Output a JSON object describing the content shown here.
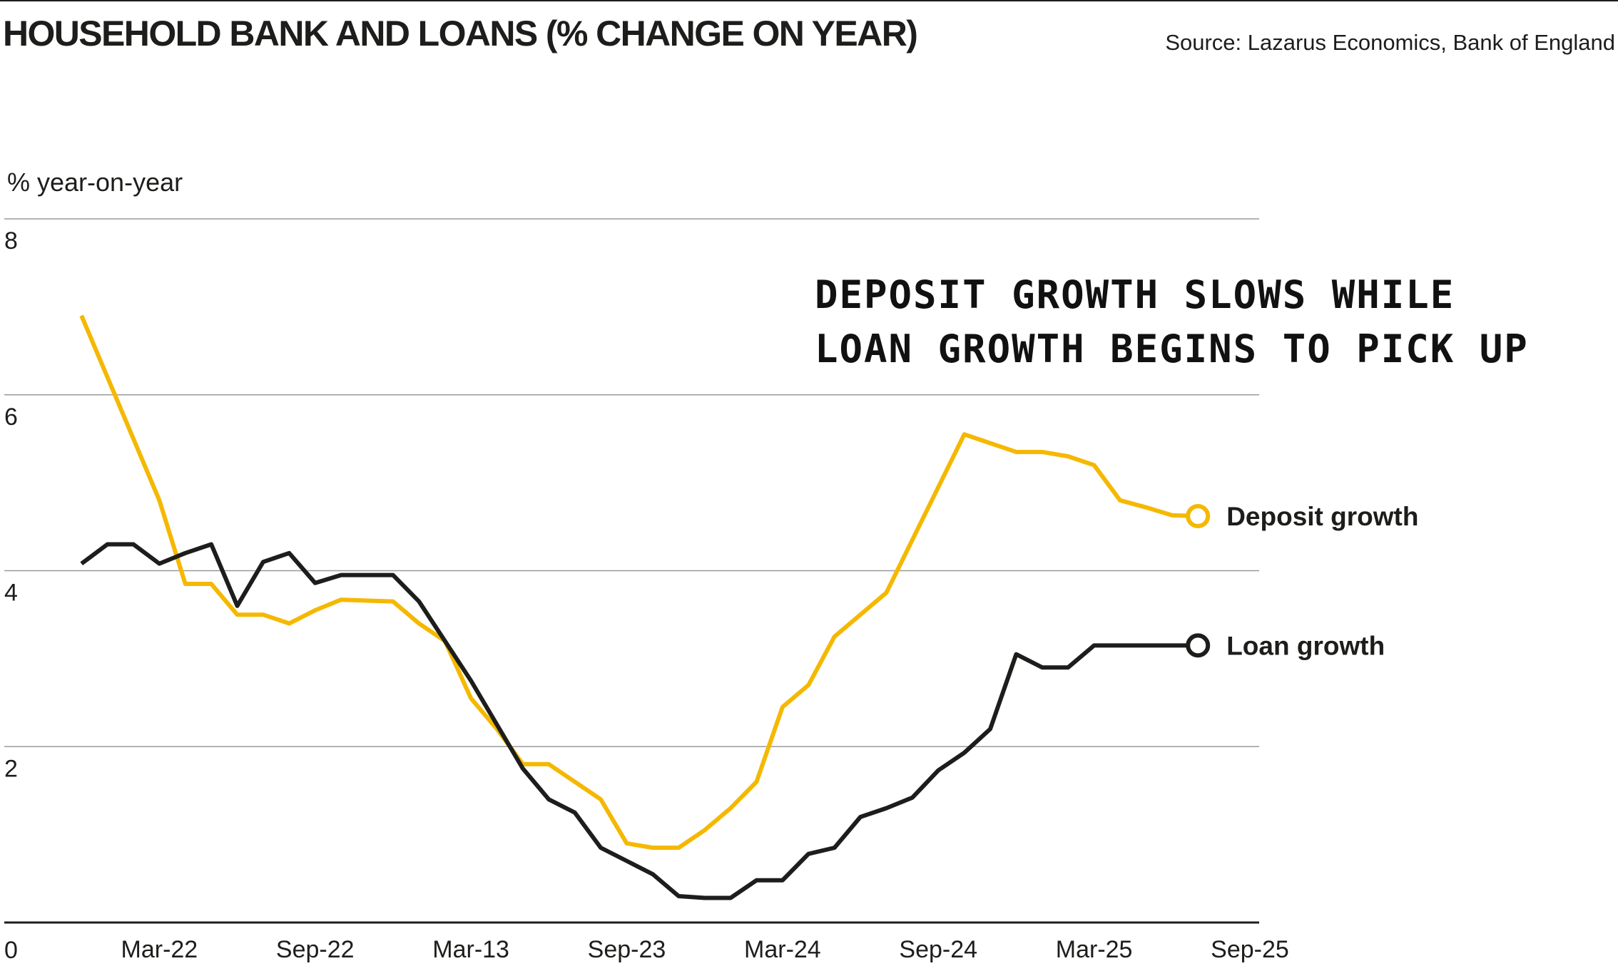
{
  "header": {
    "title": "HOUSEHOLD BANK AND LOANS (% CHANGE ON YEAR)",
    "source": "Source: Lazarus Economics, Bank of England"
  },
  "colors": {
    "deposit": "#f5b800",
    "loan": "#1d1d1b",
    "grid": "#9a9a9a",
    "text": "#1d1d1b"
  },
  "chart_data": {
    "type": "line",
    "ylabel": "% year-on-year",
    "ylim": [
      0,
      8
    ],
    "yticks": [
      "0",
      "2",
      "4",
      "6",
      "8"
    ],
    "xlim": [
      0,
      48
    ],
    "xticks": [
      {
        "x": 6,
        "label": "Mar-22"
      },
      {
        "x": 12,
        "label": "Sep-22"
      },
      {
        "x": 18,
        "label": "Mar-13"
      },
      {
        "x": 24,
        "label": "Sep-23"
      },
      {
        "x": 30,
        "label": "Mar-24"
      },
      {
        "x": 36,
        "label": "Sep-24"
      },
      {
        "x": 42,
        "label": "Mar-25"
      },
      {
        "x": 48,
        "label": "Sep-25"
      }
    ],
    "grid": true,
    "annotation": [
      "DEPOSIT GROWTH SLOWS WHILE",
      "LOAN GROWTH BEGINS TO PICK UP"
    ],
    "series": [
      {
        "name": "Deposit growth",
        "color": "#f5b800",
        "x": [
          3,
          4,
          5,
          6,
          7,
          8,
          9,
          10,
          11,
          12,
          13,
          14,
          15,
          16,
          17,
          18,
          19,
          20,
          21,
          22,
          23,
          24,
          25,
          26,
          27,
          28,
          29,
          30,
          31,
          32,
          33,
          34,
          35,
          36,
          37,
          38,
          39,
          40,
          41,
          42,
          43,
          44,
          45,
          46
        ],
        "values": [
          6.9,
          6.2,
          5.5,
          4.8,
          3.85,
          3.85,
          3.5,
          3.5,
          3.4,
          3.55,
          3.67,
          3.66,
          3.65,
          3.4,
          3.2,
          2.55,
          2.2,
          1.8,
          1.8,
          1.6,
          1.4,
          0.9,
          0.85,
          0.85,
          1.05,
          1.3,
          1.6,
          2.45,
          2.7,
          3.25,
          3.5,
          3.75,
          4.35,
          4.95,
          5.55,
          5.45,
          5.35,
          5.35,
          5.3,
          5.2,
          4.8,
          4.72,
          4.63,
          4.62
        ]
      },
      {
        "name": "Loan growth",
        "color": "#1d1d1b",
        "x": [
          3,
          4,
          5,
          6,
          7,
          8,
          9,
          10,
          11,
          12,
          13,
          14,
          15,
          16,
          17,
          18,
          19,
          20,
          21,
          22,
          23,
          24,
          25,
          26,
          27,
          28,
          29,
          30,
          31,
          32,
          33,
          34,
          35,
          36,
          37,
          38,
          39,
          40,
          41,
          42,
          43,
          44,
          45,
          46
        ],
        "values": [
          4.08,
          4.3,
          4.3,
          4.08,
          4.2,
          4.3,
          3.6,
          4.1,
          4.2,
          3.86,
          3.95,
          3.95,
          3.95,
          3.65,
          3.2,
          2.75,
          2.25,
          1.75,
          1.4,
          1.25,
          0.85,
          0.7,
          0.55,
          0.3,
          0.28,
          0.28,
          0.48,
          0.48,
          0.78,
          0.85,
          1.2,
          1.3,
          1.42,
          1.73,
          1.93,
          2.2,
          3.05,
          2.9,
          2.9,
          3.15,
          3.15,
          3.15,
          3.15,
          3.15
        ]
      }
    ]
  }
}
